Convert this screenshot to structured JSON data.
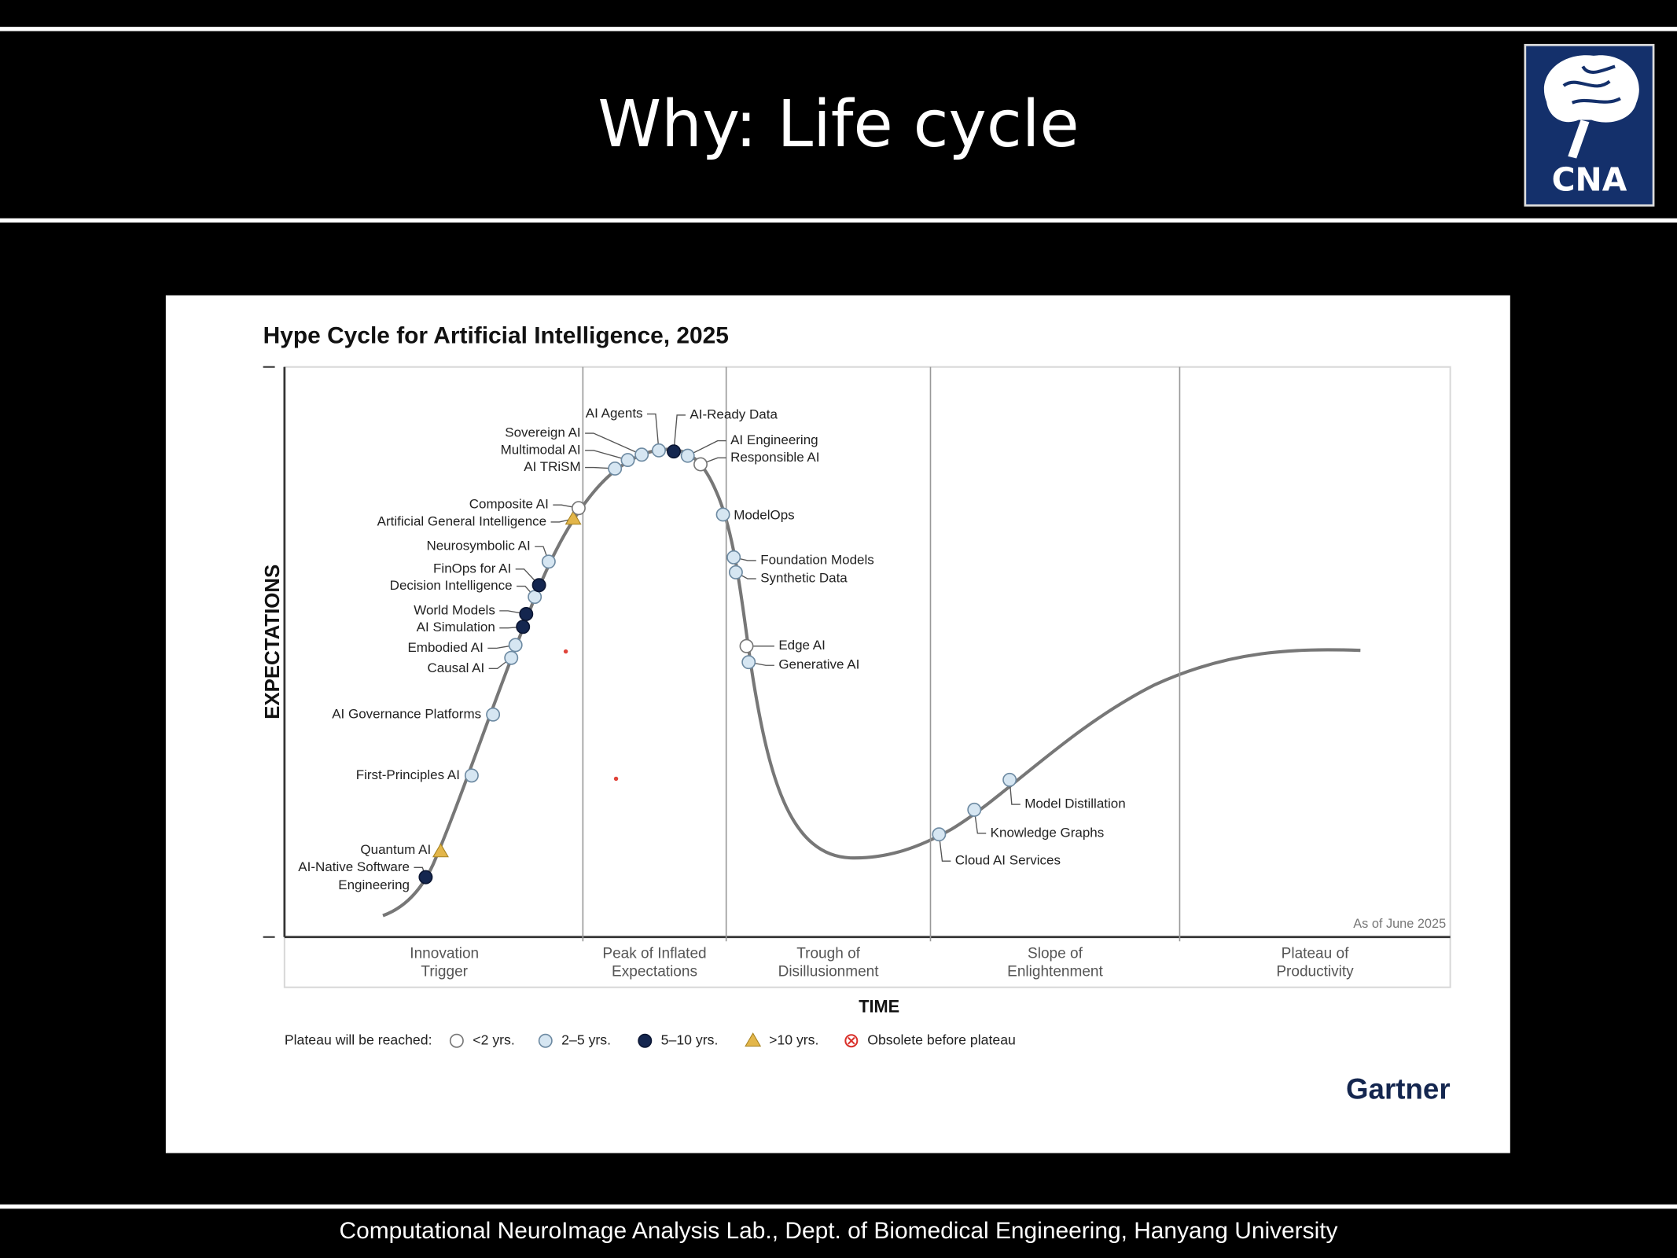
{
  "slide": {
    "title": "Why: Life cycle",
    "logo": "CNA",
    "footer": "Computational NeuroImage Analysis Lab., Dept. of Biomedical Engineering, Hanyang University"
  },
  "figure": {
    "title": "Hype Cycle for Artificial Intelligence, 2025",
    "y_axis": "EXPECTATIONS",
    "x_axis": "TIME",
    "note": "As of June 2025",
    "brand": "Gartner",
    "phases": [
      [
        "Innovation",
        "Trigger"
      ],
      [
        "Peak of Inflated",
        "Expectations"
      ],
      [
        "Trough of",
        "Disillusionment"
      ],
      [
        "Slope of",
        "Enlightenment"
      ],
      [
        "Plateau of",
        "Productivity"
      ]
    ],
    "legend": {
      "label": "Plateau will be reached:",
      "keys": [
        "<2 yrs.",
        "2–5 yrs.",
        "5–10 yrs.",
        ">10 yrs.",
        "Obsolete before plateau"
      ]
    },
    "items": [
      {
        "label": [
          "AI-Native Software",
          "Engineering"
        ],
        "plateau": 2
      },
      {
        "label": "Quantum AI",
        "plateau": 3
      },
      {
        "label": "First-Principles AI",
        "plateau": 1
      },
      {
        "label": "AI Governance Platforms",
        "plateau": 1
      },
      {
        "label": "Causal AI",
        "plateau": 1
      },
      {
        "label": "Embodied AI",
        "plateau": 1
      },
      {
        "label": "AI Simulation",
        "plateau": 2
      },
      {
        "label": "World Models",
        "plateau": 2
      },
      {
        "label": "Decision Intelligence",
        "plateau": 1
      },
      {
        "label": "FinOps for AI",
        "plateau": 2
      },
      {
        "label": "Neurosymbolic AI",
        "plateau": 1
      },
      {
        "label": "Artificial General Intelligence",
        "plateau": 3
      },
      {
        "label": "Composite AI",
        "plateau": 0
      },
      {
        "label": "AI TRiSM",
        "plateau": 1
      },
      {
        "label": "Multimodal AI",
        "plateau": 1
      },
      {
        "label": "Sovereign AI",
        "plateau": 1
      },
      {
        "label": "AI Agents",
        "plateau": 1
      },
      {
        "label": "AI-Ready Data",
        "plateau": 2
      },
      {
        "label": "AI Engineering",
        "plateau": 1
      },
      {
        "label": "Responsible AI",
        "plateau": 0
      },
      {
        "label": "ModelOps",
        "plateau": 1
      },
      {
        "label": "Foundation Models",
        "plateau": 1
      },
      {
        "label": "Synthetic Data",
        "plateau": 1
      },
      {
        "label": "Edge AI",
        "plateau": 0
      },
      {
        "label": "Generative AI",
        "plateau": 1
      },
      {
        "label": "Cloud AI Services",
        "plateau": 1
      },
      {
        "label": "Knowledge Graphs",
        "plateau": 1
      },
      {
        "label": "Model Distillation",
        "plateau": 1
      }
    ]
  }
}
